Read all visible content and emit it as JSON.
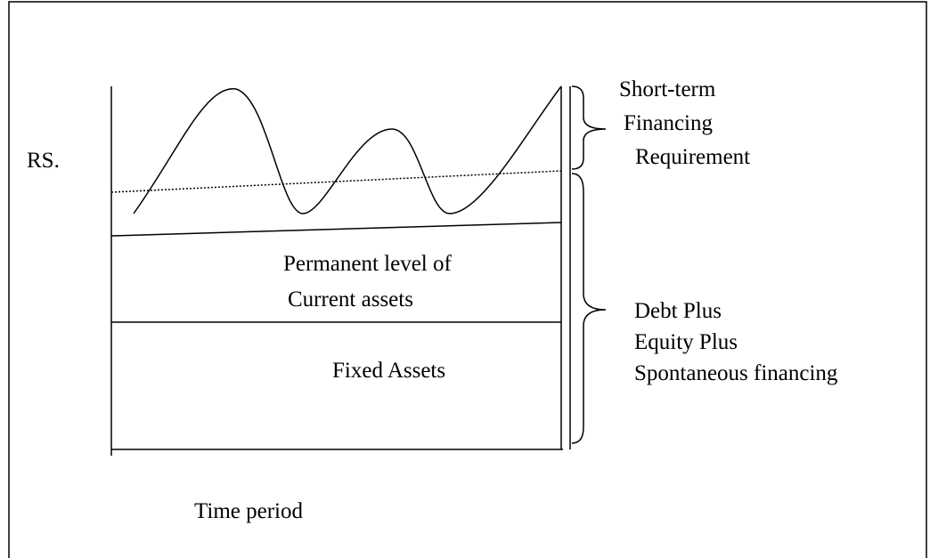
{
  "axis": {
    "y_label": "RS.",
    "x_label": "Time period"
  },
  "regions": {
    "permanent": [
      "Permanent level of",
      "Current assets"
    ],
    "fixed": "Fixed Assets"
  },
  "braces": {
    "short_term": [
      "Short-term",
      "Financing",
      "Requirement"
    ],
    "long_term": [
      "Debt Plus",
      "Equity Plus",
      "Spontaneous financing"
    ]
  }
}
